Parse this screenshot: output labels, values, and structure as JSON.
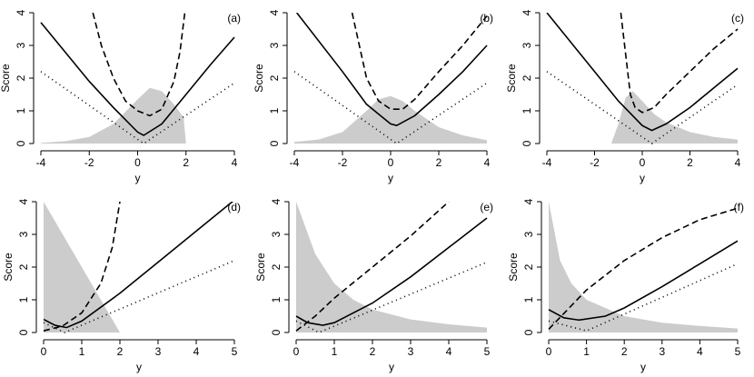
{
  "chart_data": [
    {
      "type": "line",
      "label": "(a)",
      "xlabel": "y",
      "ylabel": "Score",
      "xlim": [
        -4,
        4
      ],
      "ylim": [
        0,
        4
      ],
      "xticks": [
        -4,
        -2,
        0,
        2,
        4
      ],
      "yticks": [
        0,
        1,
        2,
        3,
        4
      ],
      "series": [
        {
          "style": "area",
          "color": "#cccccc",
          "x": [
            -4,
            -3,
            -2,
            -1,
            0,
            0.5,
            1,
            1.5,
            1.9,
            2,
            4
          ],
          "values": [
            0.02,
            0.07,
            0.2,
            0.6,
            1.35,
            1.7,
            1.6,
            1.2,
            0.8,
            0,
            0
          ]
        },
        {
          "style": "solid",
          "color": "#000000",
          "x": [
            -4,
            -2,
            -1,
            0,
            0.25,
            1,
            2,
            3,
            4
          ],
          "values": [
            3.7,
            1.9,
            1.1,
            0.35,
            0.25,
            0.6,
            1.5,
            2.4,
            3.25
          ]
        },
        {
          "style": "dashed",
          "color": "#000000",
          "x": [
            -1.85,
            -1.5,
            -1,
            -0.5,
            0,
            0.5,
            1,
            1.5,
            1.75,
            1.95
          ],
          "values": [
            4,
            3,
            2,
            1.3,
            1,
            0.85,
            1.05,
            1.9,
            2.8,
            4
          ]
        },
        {
          "style": "dotted",
          "color": "#000000",
          "x": [
            -4,
            0.25,
            4
          ],
          "values": [
            2.2,
            0,
            1.85
          ]
        }
      ]
    },
    {
      "type": "line",
      "label": "(b)",
      "xlabel": "y",
      "ylabel": "Score",
      "xlim": [
        -4,
        4
      ],
      "ylim": [
        0,
        4
      ],
      "xticks": [
        -4,
        -2,
        0,
        2,
        4
      ],
      "yticks": [
        0,
        1,
        2,
        3,
        4
      ],
      "series": [
        {
          "style": "area",
          "color": "#cccccc",
          "x": [
            -4,
            -3,
            -2,
            -1,
            -0.5,
            0,
            0.5,
            1,
            2,
            3,
            4
          ],
          "values": [
            0.05,
            0.12,
            0.35,
            1,
            1.35,
            1.45,
            1.3,
            1,
            0.5,
            0.25,
            0.1
          ]
        },
        {
          "style": "solid",
          "color": "#000000",
          "x": [
            -3.9,
            -2,
            -1,
            0,
            0.25,
            1,
            2,
            3,
            4
          ],
          "values": [
            4,
            2.2,
            1.2,
            0.6,
            0.55,
            0.85,
            1.5,
            2.2,
            3
          ]
        },
        {
          "style": "dashed",
          "color": "#000000",
          "x": [
            -1.6,
            -1,
            -0.5,
            0,
            0.5,
            1,
            2,
            3,
            4
          ],
          "values": [
            4,
            2,
            1.3,
            1.05,
            1.05,
            1.35,
            2.2,
            3,
            3.9
          ]
        },
        {
          "style": "dotted",
          "color": "#000000",
          "x": [
            -4,
            0.25,
            4
          ],
          "values": [
            2.2,
            0,
            1.85
          ]
        }
      ]
    },
    {
      "type": "line",
      "label": "(c)",
      "xlabel": "y",
      "ylabel": "Score",
      "xlim": [
        -4,
        4
      ],
      "ylim": [
        0,
        4
      ],
      "xticks": [
        -4,
        -2,
        0,
        2,
        4
      ],
      "yticks": [
        0,
        1,
        2,
        3,
        4
      ],
      "series": [
        {
          "style": "area",
          "color": "#cccccc",
          "x": [
            -1.3,
            -1,
            -0.7,
            -0.4,
            0,
            0.5,
            1,
            2,
            3,
            4
          ],
          "values": [
            0,
            0.6,
            1.4,
            1.6,
            1.3,
            0.9,
            0.65,
            0.35,
            0.2,
            0.12
          ]
        },
        {
          "style": "solid",
          "color": "#000000",
          "x": [
            -4,
            -3,
            -2,
            -1,
            0,
            0.4,
            1,
            2,
            3,
            4
          ],
          "values": [
            4,
            3.1,
            2.2,
            1.3,
            0.55,
            0.4,
            0.6,
            1.1,
            1.7,
            2.3
          ]
        },
        {
          "style": "dashed",
          "color": "#000000",
          "x": [
            -0.9,
            -0.5,
            -0.3,
            0,
            0.5,
            1,
            2,
            3,
            4
          ],
          "values": [
            4,
            1.5,
            1.1,
            0.95,
            1.1,
            1.5,
            2.2,
            2.9,
            3.5
          ]
        },
        {
          "style": "dotted",
          "color": "#000000",
          "x": [
            -4,
            0.4,
            4
          ],
          "values": [
            2.2,
            0,
            1.8
          ]
        }
      ]
    },
    {
      "type": "line",
      "label": "(d)",
      "xlabel": "y",
      "ylabel": "Score",
      "xlim": [
        0,
        5
      ],
      "ylim": [
        0,
        4
      ],
      "xticks": [
        0,
        1,
        2,
        3,
        4,
        5
      ],
      "yticks": [
        0,
        1,
        2,
        3,
        4
      ],
      "series": [
        {
          "style": "area",
          "color": "#cccccc",
          "x": [
            0,
            2,
            5
          ],
          "values": [
            4,
            0,
            0
          ]
        },
        {
          "style": "solid",
          "color": "#000000",
          "x": [
            0,
            0.3,
            0.6,
            1,
            2,
            3,
            4,
            5
          ],
          "values": [
            0.4,
            0.22,
            0.15,
            0.35,
            1.2,
            2.15,
            3.1,
            4.05
          ]
        },
        {
          "style": "dashed",
          "color": "#000000",
          "x": [
            0,
            0.5,
            1,
            1.5,
            1.8,
            2
          ],
          "values": [
            0.05,
            0.2,
            0.6,
            1.5,
            2.6,
            4
          ]
        },
        {
          "style": "dotted",
          "color": "#000000",
          "x": [
            0,
            0.55,
            5
          ],
          "values": [
            0.3,
            0,
            2.2
          ]
        }
      ]
    },
    {
      "type": "line",
      "label": "(e)",
      "xlabel": "y",
      "ylabel": "Score",
      "xlim": [
        0,
        5
      ],
      "ylim": [
        0,
        4
      ],
      "xticks": [
        0,
        1,
        2,
        3,
        4,
        5
      ],
      "yticks": [
        0,
        1,
        2,
        3,
        4
      ],
      "series": [
        {
          "style": "area",
          "color": "#cccccc",
          "x": [
            0,
            0.5,
            1,
            1.5,
            2,
            3,
            4,
            5
          ],
          "values": [
            4,
            2.4,
            1.5,
            1,
            0.7,
            0.4,
            0.25,
            0.15
          ]
        },
        {
          "style": "solid",
          "color": "#000000",
          "x": [
            0,
            0.3,
            0.7,
            1,
            2,
            3,
            4,
            5
          ],
          "values": [
            0.5,
            0.3,
            0.22,
            0.3,
            0.9,
            1.7,
            2.6,
            3.5
          ]
        },
        {
          "style": "dashed",
          "color": "#000000",
          "x": [
            0,
            0.5,
            1,
            2,
            3,
            4
          ],
          "values": [
            0.05,
            0.5,
            1.05,
            2,
            2.95,
            4
          ]
        },
        {
          "style": "dotted",
          "color": "#000000",
          "x": [
            0,
            0.6,
            5
          ],
          "values": [
            0.35,
            0,
            2.15
          ]
        }
      ]
    },
    {
      "type": "line",
      "label": "(f)",
      "xlabel": "y",
      "ylabel": "Score",
      "xlim": [
        0,
        5
      ],
      "ylim": [
        0,
        4
      ],
      "xticks": [
        0,
        1,
        2,
        3,
        4,
        5
      ],
      "yticks": [
        0,
        1,
        2,
        3,
        4
      ],
      "series": [
        {
          "style": "area",
          "color": "#cccccc",
          "x": [
            0,
            0.3,
            0.6,
            1,
            2,
            3,
            4,
            5
          ],
          "values": [
            4,
            2.2,
            1.5,
            1,
            0.5,
            0.3,
            0.2,
            0.12
          ]
        },
        {
          "style": "solid",
          "color": "#000000",
          "x": [
            0,
            0.4,
            0.8,
            1.5,
            2,
            3,
            4,
            5
          ],
          "values": [
            0.7,
            0.45,
            0.38,
            0.5,
            0.75,
            1.4,
            2.1,
            2.8
          ]
        },
        {
          "style": "dashed",
          "color": "#000000",
          "x": [
            0,
            0.5,
            1,
            2,
            3,
            4,
            5
          ],
          "values": [
            0.1,
            0.7,
            1.3,
            2.2,
            2.9,
            3.45,
            3.8
          ]
        },
        {
          "style": "dotted",
          "color": "#000000",
          "x": [
            0,
            1,
            5
          ],
          "values": [
            0.35,
            0.05,
            2.1
          ]
        }
      ]
    }
  ]
}
